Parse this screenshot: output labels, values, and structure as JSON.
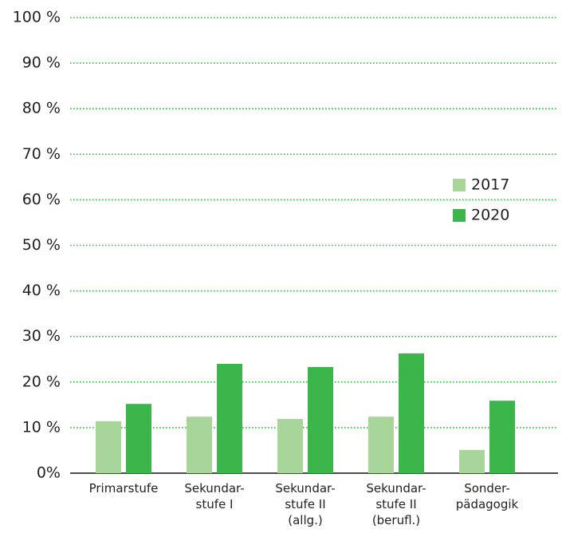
{
  "chart_data": {
    "type": "bar",
    "categories": [
      "Primarstufe",
      "Sekundar-\nstufe I",
      "Sekundar-\nstufe II\n(allg.)",
      "Sekundar-\nstufe II\n(berufl.)",
      "Sonder-\npädagogik"
    ],
    "series": [
      {
        "name": "2017",
        "color": "#a8d69a",
        "values": [
          11.4,
          12.4,
          11.9,
          12.4,
          5.1
        ]
      },
      {
        "name": "2020",
        "color": "#3cb54a",
        "values": [
          15.2,
          24.0,
          23.3,
          26.3,
          15.9
        ]
      }
    ],
    "ylim": [
      0,
      100
    ],
    "yticks": [
      {
        "value": 0,
        "label": "0%"
      },
      {
        "value": 10,
        "label": "10 %"
      },
      {
        "value": 20,
        "label": "20 %"
      },
      {
        "value": 30,
        "label": "30 %"
      },
      {
        "value": 40,
        "label": "40 %"
      },
      {
        "value": 50,
        "label": "50 %"
      },
      {
        "value": 60,
        "label": "60 %"
      },
      {
        "value": 70,
        "label": "70 %"
      },
      {
        "value": 80,
        "label": "80 %"
      },
      {
        "value": 90,
        "label": "90 %"
      },
      {
        "value": 100,
        "label": "100 %"
      }
    ],
    "grid": true
  }
}
